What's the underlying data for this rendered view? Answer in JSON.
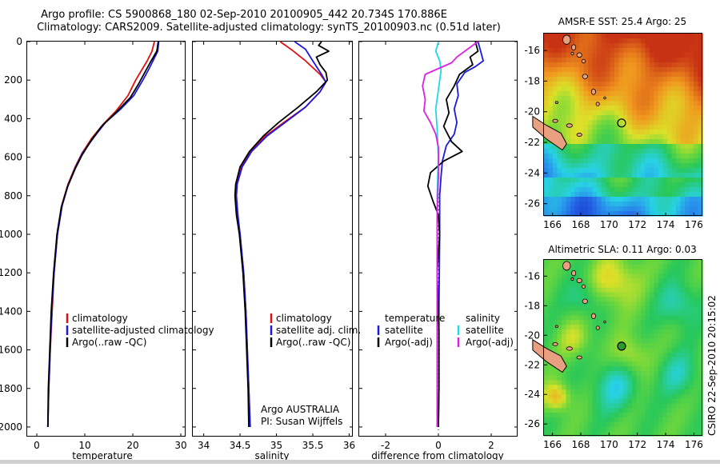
{
  "header": {
    "title_line1": "Argo profile: CS 5900868_180 02-Sep-2010 20100905_442 20.734S 170.886E",
    "title_line2": "Climatology: CARS2009. Satellite-adjusted climatology: synTS_20100903.nc (0.51d later)"
  },
  "footer": {
    "stamp": "CSIRO 22-Sep-2010 20:15:02"
  },
  "colors": {
    "clim": "#e01010",
    "sat": "#1a1ae0",
    "argo": "#000000",
    "sal_sat": "#20d8e8",
    "sal_argo": "#e020e0"
  },
  "chart_data": [
    {
      "type": "line",
      "name": "temperature-profile",
      "xlabel": "temperature",
      "ylabel": "",
      "xlim": [
        -2,
        31
      ],
      "ylim": [
        2050,
        0
      ],
      "xticks": [
        "0",
        "10",
        "20",
        "30"
      ],
      "xtick_values": [
        0,
        10,
        20,
        30
      ],
      "yticks": [
        "0",
        "200",
        "400",
        "600",
        "800",
        "1000",
        "1200",
        "1400",
        "1600",
        "1800",
        "2000"
      ],
      "ytick_values": [
        0,
        200,
        400,
        600,
        800,
        1000,
        1200,
        1400,
        1600,
        1800,
        2000
      ],
      "legend": [
        "climatology",
        "satellite-adjusted climatology",
        "Argo(..raw -QC)"
      ],
      "series": [
        {
          "name": "climatology",
          "color": "clim",
          "points": [
            [
              24.5,
              0
            ],
            [
              24.0,
              50
            ],
            [
              23.0,
              100
            ],
            [
              21.8,
              150
            ],
            [
              20.6,
              200
            ],
            [
              19.0,
              280
            ],
            [
              16.5,
              360
            ],
            [
              13.8,
              430
            ],
            [
              11.5,
              500
            ],
            [
              9.4,
              580
            ],
            [
              8.0,
              650
            ],
            [
              6.5,
              740
            ],
            [
              5.2,
              850
            ],
            [
              4.3,
              1000
            ],
            [
              3.6,
              1200
            ],
            [
              3.2,
              1400
            ],
            [
              2.8,
              1600
            ],
            [
              2.5,
              1800
            ],
            [
              2.3,
              2000
            ]
          ]
        },
        {
          "name": "satellite-adjusted climatology",
          "color": "sat",
          "points": [
            [
              25.4,
              0
            ],
            [
              25.2,
              50
            ],
            [
              24.2,
              100
            ],
            [
              23.2,
              150
            ],
            [
              22.1,
              200
            ],
            [
              20.2,
              280
            ],
            [
              17.5,
              350
            ],
            [
              14.3,
              420
            ],
            [
              11.8,
              500
            ],
            [
              9.5,
              580
            ],
            [
              8.1,
              650
            ],
            [
              6.6,
              740
            ],
            [
              5.3,
              850
            ],
            [
              4.3,
              1000
            ],
            [
              3.6,
              1200
            ],
            [
              3.1,
              1400
            ],
            [
              2.8,
              1600
            ],
            [
              2.5,
              1800
            ],
            [
              2.3,
              2000
            ]
          ]
        },
        {
          "name": "Argo(..raw -QC)",
          "color": "argo",
          "points": [
            [
              25.3,
              0
            ],
            [
              25.0,
              50
            ],
            [
              23.6,
              110
            ],
            [
              22.5,
              160
            ],
            [
              21.2,
              220
            ],
            [
              19.5,
              290
            ],
            [
              16.4,
              370
            ],
            [
              13.5,
              440
            ],
            [
              11.4,
              510
            ],
            [
              9.4,
              590
            ],
            [
              8.0,
              660
            ],
            [
              6.3,
              760
            ],
            [
              5.1,
              860
            ],
            [
              4.2,
              1000
            ],
            [
              3.5,
              1200
            ],
            [
              3.0,
              1400
            ],
            [
              2.7,
              1600
            ],
            [
              2.4,
              1800
            ],
            [
              2.3,
              2000
            ]
          ]
        }
      ]
    },
    {
      "type": "line",
      "name": "salinity-profile",
      "xlabel": "salinity",
      "ylabel": "",
      "xlim": [
        33.85,
        36.05
      ],
      "ylim": [
        2050,
        0
      ],
      "xticks": [
        "34",
        "34.5",
        "35",
        "35.5",
        "36"
      ],
      "xtick_values": [
        34,
        34.5,
        35,
        35.5,
        36
      ],
      "yticks": [
        "0",
        "200",
        "400",
        "600",
        "800",
        "1000",
        "1200",
        "1400",
        "1600",
        "1800",
        "2000"
      ],
      "ytick_values": [
        0,
        200,
        400,
        600,
        800,
        1000,
        1200,
        1400,
        1600,
        1800,
        2000
      ],
      "legend": [
        "climatology",
        "satellite adj. clim.",
        "Argo(..raw -QC)"
      ],
      "annotation": [
        "Argo AUSTRALIA",
        "PI: Susan Wijffels"
      ],
      "series": [
        {
          "name": "climatology",
          "color": "clim",
          "points": [
            [
              35.05,
              0
            ],
            [
              35.2,
              40
            ],
            [
              35.4,
              100
            ],
            [
              35.6,
              170
            ],
            [
              35.68,
              210
            ],
            [
              35.6,
              260
            ],
            [
              35.4,
              340
            ],
            [
              35.1,
              420
            ],
            [
              34.85,
              490
            ],
            [
              34.65,
              570
            ],
            [
              34.52,
              650
            ],
            [
              34.45,
              740
            ],
            [
              34.44,
              800
            ],
            [
              34.46,
              900
            ],
            [
              34.5,
              1000
            ],
            [
              34.55,
              1200
            ],
            [
              34.58,
              1400
            ],
            [
              34.6,
              1600
            ],
            [
              34.62,
              1800
            ],
            [
              34.64,
              2000
            ]
          ]
        },
        {
          "name": "satellite adj. clim.",
          "color": "sat",
          "points": [
            [
              35.25,
              0
            ],
            [
              35.4,
              40
            ],
            [
              35.5,
              100
            ],
            [
              35.62,
              170
            ],
            [
              35.68,
              210
            ],
            [
              35.6,
              260
            ],
            [
              35.4,
              340
            ],
            [
              35.12,
              420
            ],
            [
              34.87,
              490
            ],
            [
              34.66,
              570
            ],
            [
              34.53,
              650
            ],
            [
              34.46,
              740
            ],
            [
              34.45,
              800
            ],
            [
              34.47,
              900
            ],
            [
              34.5,
              1000
            ],
            [
              34.55,
              1200
            ],
            [
              34.58,
              1400
            ],
            [
              34.6,
              1600
            ],
            [
              34.62,
              1800
            ],
            [
              34.64,
              2000
            ]
          ]
        },
        {
          "name": "Argo(..raw -QC)",
          "color": "argo",
          "points": [
            [
              35.62,
              0
            ],
            [
              35.58,
              20
            ],
            [
              35.72,
              50
            ],
            [
              35.55,
              80
            ],
            [
              35.6,
              120
            ],
            [
              35.68,
              160
            ],
            [
              35.7,
              200
            ],
            [
              35.55,
              260
            ],
            [
              35.3,
              340
            ],
            [
              35.03,
              420
            ],
            [
              34.82,
              490
            ],
            [
              34.63,
              570
            ],
            [
              34.5,
              650
            ],
            [
              34.44,
              740
            ],
            [
              34.43,
              800
            ],
            [
              34.45,
              900
            ],
            [
              34.49,
              1000
            ],
            [
              34.54,
              1200
            ],
            [
              34.57,
              1400
            ],
            [
              34.59,
              1600
            ],
            [
              34.61,
              1800
            ],
            [
              34.62,
              2000
            ]
          ]
        }
      ]
    },
    {
      "type": "line",
      "name": "difference-profile",
      "xlabel": "difference from climatology",
      "ylabel": "",
      "xlim": [
        -3.0,
        3.0
      ],
      "ylim": [
        2050,
        0
      ],
      "xticks": [
        "-2",
        "0",
        "2"
      ],
      "xtick_values": [
        -2,
        0,
        2
      ],
      "yticks": [
        "0",
        "200",
        "400",
        "600",
        "800",
        "1000",
        "1200",
        "1400",
        "1600",
        "1800",
        "2000"
      ],
      "ytick_values": [
        0,
        200,
        400,
        600,
        800,
        1000,
        1200,
        1400,
        1600,
        1800,
        2000
      ],
      "legend_temperature": [
        "temperature",
        "satellite",
        "Argo(-adj)"
      ],
      "legend_salinity": [
        "salinity",
        "satellite",
        "Argo(-adj)"
      ],
      "series": [
        {
          "name": "temperature satellite",
          "color": "sat",
          "points": [
            [
              1.5,
              0
            ],
            [
              1.6,
              50
            ],
            [
              1.7,
              100
            ],
            [
              1.4,
              130
            ],
            [
              1.0,
              160
            ],
            [
              0.7,
              220
            ],
            [
              0.75,
              280
            ],
            [
              0.6,
              350
            ],
            [
              0.7,
              420
            ],
            [
              0.6,
              480
            ],
            [
              0.3,
              540
            ],
            [
              0.15,
              620
            ],
            [
              0.1,
              700
            ],
            [
              0.05,
              800
            ],
            [
              0.05,
              1000
            ],
            [
              0.02,
              1400
            ],
            [
              0.02,
              1800
            ],
            [
              0.0,
              2000
            ]
          ]
        },
        {
          "name": "temperature Argo(-adj)",
          "color": "argo",
          "points": [
            [
              1.4,
              0
            ],
            [
              1.5,
              50
            ],
            [
              1.2,
              80
            ],
            [
              1.3,
              120
            ],
            [
              0.8,
              170
            ],
            [
              0.6,
              230
            ],
            [
              0.3,
              300
            ],
            [
              0.4,
              370
            ],
            [
              0.2,
              440
            ],
            [
              0.5,
              520
            ],
            [
              0.9,
              570
            ],
            [
              0.2,
              620
            ],
            [
              -0.3,
              680
            ],
            [
              -0.4,
              750
            ],
            [
              -0.2,
              830
            ],
            [
              0.0,
              900
            ],
            [
              0.05,
              1000
            ],
            [
              -0.05,
              1200
            ],
            [
              0.02,
              1500
            ],
            [
              0.02,
              1800
            ],
            [
              0.0,
              2000
            ]
          ]
        },
        {
          "name": "salinity satellite",
          "color": "sal_sat",
          "points": [
            [
              0.0,
              0
            ],
            [
              -0.1,
              50
            ],
            [
              0.05,
              100
            ],
            [
              0.1,
              150
            ],
            [
              0.0,
              250
            ],
            [
              -0.1,
              350
            ],
            [
              -0.05,
              450
            ],
            [
              0.0,
              600
            ],
            [
              -0.05,
              800
            ],
            [
              -0.05,
              1000
            ],
            [
              -0.05,
              1400
            ],
            [
              -0.05,
              1800
            ],
            [
              -0.05,
              2000
            ]
          ]
        },
        {
          "name": "salinity Argo(-adj)",
          "color": "sal_argo",
          "points": [
            [
              1.5,
              0
            ],
            [
              1.0,
              50
            ],
            [
              0.7,
              80
            ],
            [
              0.5,
              110
            ],
            [
              -0.5,
              170
            ],
            [
              -0.6,
              230
            ],
            [
              -0.5,
              300
            ],
            [
              -0.55,
              360
            ],
            [
              -0.3,
              420
            ],
            [
              -0.1,
              480
            ],
            [
              0.0,
              550
            ],
            [
              0.0,
              700
            ],
            [
              -0.05,
              900
            ],
            [
              -0.05,
              1200
            ],
            [
              -0.05,
              1500
            ],
            [
              -0.05,
              1800
            ],
            [
              -0.05,
              2000
            ]
          ]
        }
      ]
    },
    {
      "type": "heatmap",
      "name": "sst-map",
      "title": "AMSR-E SST: 25.4 Argo: 25",
      "xlim": [
        165.4,
        176.6
      ],
      "ylim": [
        -26.8,
        -14.9
      ],
      "xticks": [
        "166",
        "168",
        "170",
        "172",
        "174",
        "176"
      ],
      "xtick_values": [
        166,
        168,
        170,
        172,
        174,
        176
      ],
      "yticks": [
        "-16",
        "-18",
        "-20",
        "-22",
        "-24",
        "-26"
      ],
      "ytick_values": [
        -16,
        -18,
        -20,
        -22,
        -24,
        -26
      ],
      "marker": {
        "lon": 170.886,
        "lat": -20.734
      }
    },
    {
      "type": "heatmap",
      "name": "sla-map",
      "title": "Altimetric SLA: 0.11 Argo: 0.03",
      "xlim": [
        165.4,
        176.6
      ],
      "ylim": [
        -26.8,
        -14.9
      ],
      "xticks": [
        "166",
        "168",
        "170",
        "172",
        "174",
        "176"
      ],
      "xtick_values": [
        166,
        168,
        170,
        172,
        174,
        176
      ],
      "yticks": [
        "-16",
        "-18",
        "-20",
        "-22",
        "-24",
        "-26"
      ],
      "ytick_values": [
        -16,
        -18,
        -20,
        -22,
        -24,
        -26
      ],
      "marker": {
        "lon": 170.886,
        "lat": -20.734
      }
    }
  ]
}
